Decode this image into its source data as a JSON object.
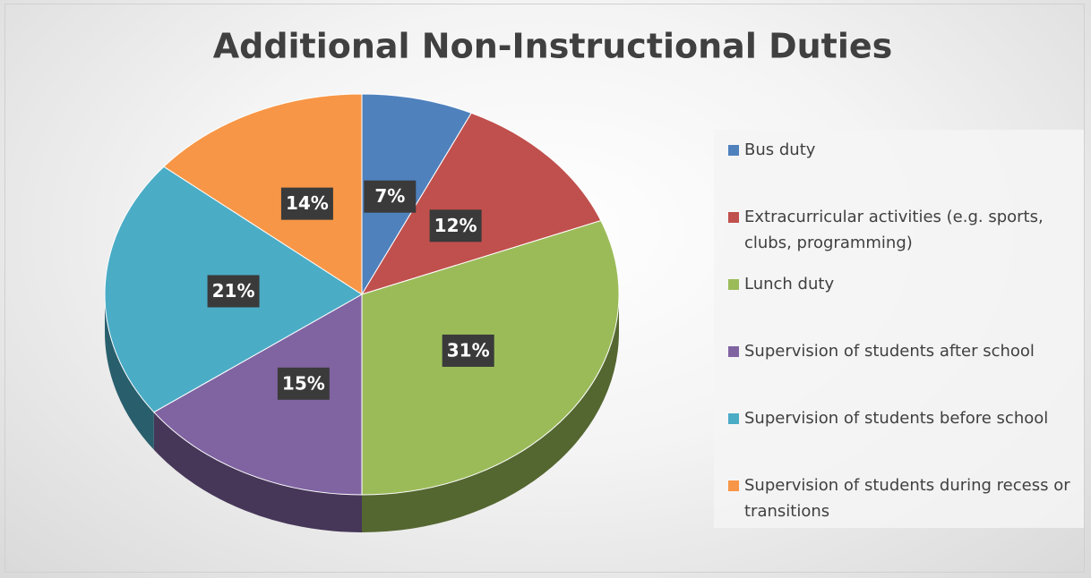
{
  "chart_data": {
    "type": "pie3d",
    "title": "Additional Non-Instructional Duties",
    "categories": [
      "Bus duty",
      "Extracurricular activities (e.g. sports, clubs, programming)",
      "Lunch duty",
      "Supervision of students after school",
      "Supervision of students before school",
      "Supervision of students during recess or transitions"
    ],
    "values": [
      7,
      12,
      31,
      15,
      21,
      14
    ],
    "value_labels": [
      "7%",
      "12%",
      "31%",
      "15%",
      "21%",
      "14%"
    ],
    "colors": [
      "#4f81bd",
      "#c0504d",
      "#9bbb59",
      "#8064a2",
      "#4bacc6",
      "#f79646"
    ],
    "legend": "right"
  }
}
